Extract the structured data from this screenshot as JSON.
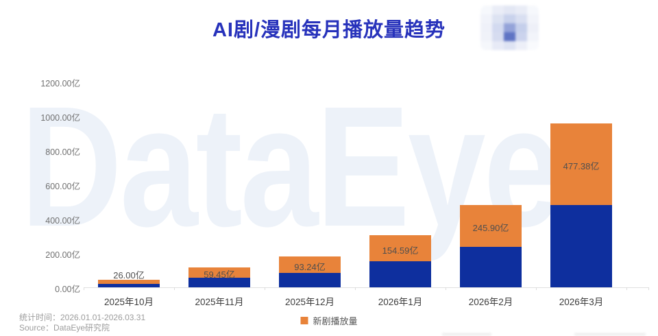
{
  "title": "AI剧/漫剧每月播放量趋势",
  "watermark_text": "DataEye",
  "header_logo": {
    "cells": [
      "#f6f8fc",
      "#eaedf7",
      "#e3e7f4",
      "#e9ecf6",
      "#f6f8fc",
      "#f1f3fa",
      "#dde3f2",
      "#c9d2ec",
      "#d9dff1",
      "#f2f4fa",
      "#eff1f9",
      "#d3daf0",
      "#94a3d9",
      "#c5cfeb",
      "#eef0f8",
      "#f0f2f9",
      "#d6dcf0",
      "#5f74c4",
      "#cbd3ed",
      "#f2f4fa",
      "#f5f7fb",
      "#e7eaf6",
      "#dee3f3",
      "#edeff8",
      "#f9fafd"
    ]
  },
  "footer": {
    "stat_period": "统计时间：2026.01.01-2026.03.31",
    "source": "Source：DataEye研究院"
  },
  "legend": {
    "items": [
      {
        "label": "新剧播放量",
        "color": "#E8833A"
      }
    ]
  },
  "colors": {
    "title": "#2732BB",
    "bar_blue": "#0E2F9E",
    "bar_orange": "#E8833A",
    "watermark": "#EDF2F9",
    "axis_line": "#E0E0E0",
    "y_label": "#707070",
    "x_label": "#3C3C3C",
    "bar_label": "#4F4F4F",
    "footer_text": "#9C9C9C"
  },
  "chart_data": {
    "type": "bar",
    "stacked": true,
    "title": "AI剧/漫剧每月播放量趋势",
    "unit": "亿",
    "categories": [
      "2025年10月",
      "2025年11月",
      "2025年12月",
      "2026年1月",
      "2026年2月",
      "2026年3月"
    ],
    "series": [
      {
        "name": "",
        "color": "#0E2F9E",
        "values_estimated": true,
        "values": [
          20,
          55,
          85,
          150,
          236,
          478
        ],
        "note": "blue base segment; no data labels shown in image, values estimated from bar heights"
      },
      {
        "name": "新剧播放量",
        "color": "#E8833A",
        "values": [
          26.0,
          59.45,
          93.24,
          154.59,
          245.9,
          477.38
        ]
      }
    ],
    "bar_labels": [
      "26.00亿",
      "59.45亿",
      "93.24亿",
      "154.59亿",
      "245.90亿",
      "477.38亿"
    ],
    "y_tick_labels": [
      "0.00亿",
      "200.00亿",
      "400.00亿",
      "600.00亿",
      "800.00亿",
      "1000.00亿",
      "1200.00亿"
    ],
    "y_tick_values": [
      0,
      200,
      400,
      600,
      800,
      1000,
      1200
    ],
    "ylim": [
      0,
      1200
    ],
    "grid": false,
    "legend_position": "bottom-center"
  }
}
